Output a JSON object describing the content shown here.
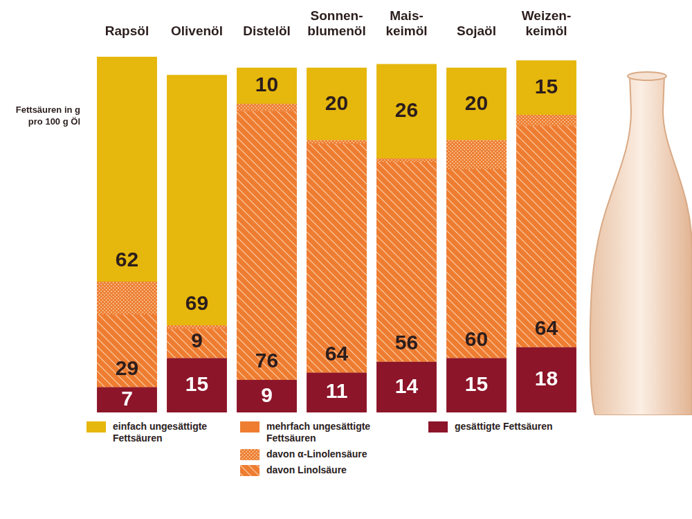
{
  "chart_data": {
    "type": "bar",
    "stacked": true,
    "data_labels": true,
    "tick_labels": "x",
    "grid": false,
    "legend": "bottom",
    "y_label": "Fettsäuren in g pro 100 g Öl",
    "categories": [
      "Rapsöl",
      "Olivenöl",
      "Distelöl",
      "Sonnen-\nblumenöl",
      "Mais-\nkeimöl",
      "Sojaöl",
      "Weizen-\nkeimöl"
    ],
    "ylim": [
      0,
      100
    ],
    "series": [
      {
        "name": "gesättigte Fettsäuren",
        "color": "#8c1529",
        "values": [
          7,
          15,
          9,
          11,
          14,
          15,
          18
        ]
      },
      {
        "name": "mehrfach ungesättigte Fettsäuren",
        "color": "#ee7d31",
        "values": [
          29,
          9,
          76,
          64,
          56,
          60,
          64
        ],
        "components": [
          {
            "name": "davon α-Linolensäure",
            "marker": "dotted",
            "values": [
              9,
              1,
              2,
              1,
              1,
              8,
              3
            ]
          },
          {
            "name": "davon Linolsäure",
            "marker": "hatched",
            "values": [
              20,
              8,
              74,
              63,
              55,
              52,
              61
            ]
          }
        ]
      },
      {
        "name": "einfach ungesättigte Fettsäuren",
        "color": "#e6b70c",
        "values": [
          62,
          69,
          10,
          20,
          26,
          20,
          15
        ]
      }
    ]
  }
}
